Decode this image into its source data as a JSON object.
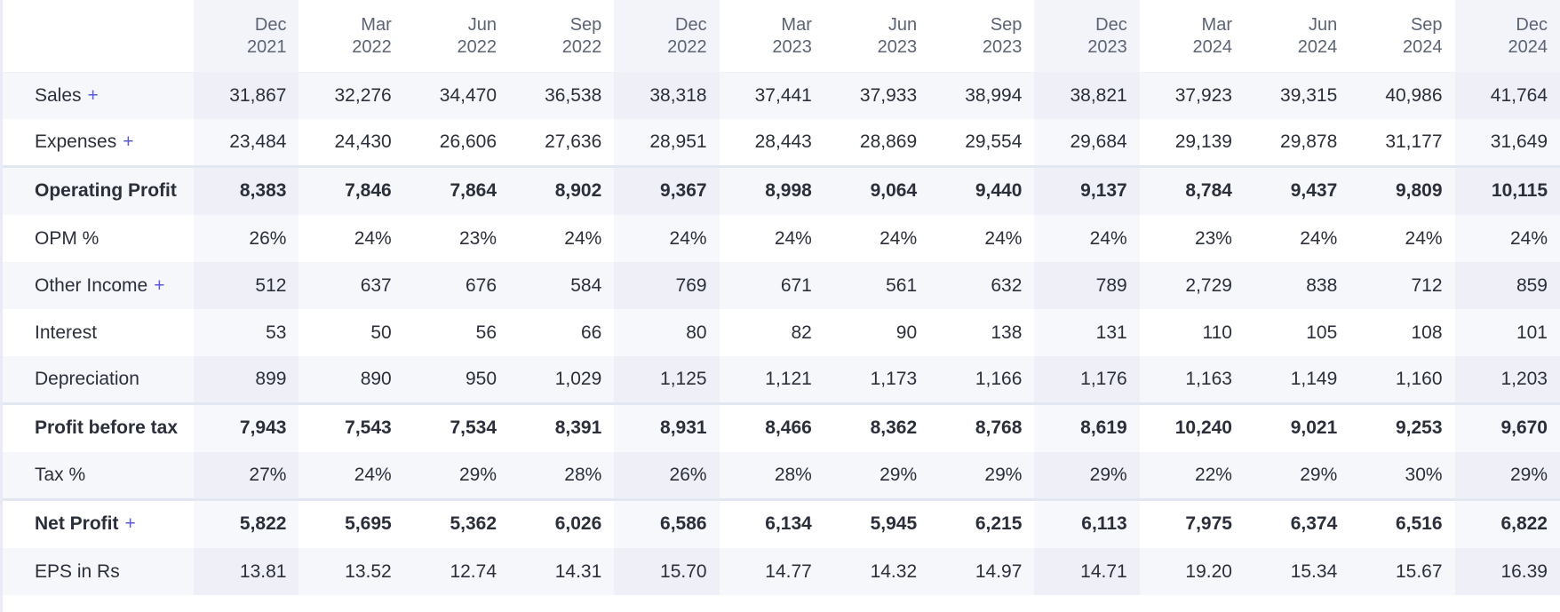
{
  "columns": [
    {
      "month": "Dec",
      "year": "2021"
    },
    {
      "month": "Mar",
      "year": "2022"
    },
    {
      "month": "Jun",
      "year": "2022"
    },
    {
      "month": "Sep",
      "year": "2022"
    },
    {
      "month": "Dec",
      "year": "2022"
    },
    {
      "month": "Mar",
      "year": "2023"
    },
    {
      "month": "Jun",
      "year": "2023"
    },
    {
      "month": "Sep",
      "year": "2023"
    },
    {
      "month": "Dec",
      "year": "2023"
    },
    {
      "month": "Mar",
      "year": "2024"
    },
    {
      "month": "Jun",
      "year": "2024"
    },
    {
      "month": "Sep",
      "year": "2024"
    },
    {
      "month": "Dec",
      "year": "2024"
    }
  ],
  "rows": [
    {
      "label": "Sales",
      "expandable": true,
      "expand_symbol": "+",
      "values": [
        "31,867",
        "32,276",
        "34,470",
        "36,538",
        "38,318",
        "37,441",
        "37,933",
        "38,994",
        "38,821",
        "37,923",
        "39,315",
        "40,986",
        "41,764"
      ]
    },
    {
      "label": "Expenses",
      "expandable": true,
      "expand_symbol": "+",
      "values": [
        "23,484",
        "24,430",
        "26,606",
        "27,636",
        "28,951",
        "28,443",
        "28,869",
        "29,554",
        "29,684",
        "29,139",
        "29,878",
        "31,177",
        "31,649"
      ]
    },
    {
      "label": "Operating Profit",
      "bold": true,
      "values": [
        "8,383",
        "7,846",
        "7,864",
        "8,902",
        "9,367",
        "8,998",
        "9,064",
        "9,440",
        "9,137",
        "8,784",
        "9,437",
        "9,809",
        "10,115"
      ]
    },
    {
      "label": "OPM %",
      "values": [
        "26%",
        "24%",
        "23%",
        "24%",
        "24%",
        "24%",
        "24%",
        "24%",
        "24%",
        "23%",
        "24%",
        "24%",
        "24%"
      ]
    },
    {
      "label": "Other Income",
      "expandable": true,
      "expand_symbol": "+",
      "values": [
        "512",
        "637",
        "676",
        "584",
        "769",
        "671",
        "561",
        "632",
        "789",
        "2,729",
        "838",
        "712",
        "859"
      ]
    },
    {
      "label": "Interest",
      "values": [
        "53",
        "50",
        "56",
        "66",
        "80",
        "82",
        "90",
        "138",
        "131",
        "110",
        "105",
        "108",
        "101"
      ]
    },
    {
      "label": "Depreciation",
      "values": [
        "899",
        "890",
        "950",
        "1,029",
        "1,125",
        "1,121",
        "1,173",
        "1,166",
        "1,176",
        "1,163",
        "1,149",
        "1,160",
        "1,203"
      ]
    },
    {
      "label": "Profit before tax",
      "bold": true,
      "values": [
        "7,943",
        "7,543",
        "7,534",
        "8,391",
        "8,931",
        "8,466",
        "8,362",
        "8,768",
        "8,619",
        "10,240",
        "9,021",
        "9,253",
        "9,670"
      ]
    },
    {
      "label": "Tax %",
      "values": [
        "27%",
        "24%",
        "29%",
        "28%",
        "26%",
        "28%",
        "29%",
        "29%",
        "29%",
        "22%",
        "29%",
        "30%",
        "29%"
      ]
    },
    {
      "label": "Net Profit",
      "bold": true,
      "expandable": true,
      "expand_symbol": "+",
      "values": [
        "5,822",
        "5,695",
        "5,362",
        "6,026",
        "6,586",
        "6,134",
        "5,945",
        "6,215",
        "6,113",
        "7,975",
        "6,374",
        "6,516",
        "6,822"
      ]
    },
    {
      "label": "EPS in Rs",
      "values": [
        "13.81",
        "13.52",
        "12.74",
        "14.31",
        "15.70",
        "14.77",
        "14.32",
        "14.97",
        "14.71",
        "19.20",
        "15.34",
        "15.67",
        "16.39"
      ]
    }
  ],
  "colors": {
    "accent": "#5b5bd6",
    "row_alt": "#f6f7fb",
    "column_shade": "#f3f4fa",
    "divider": "#e3e7f2"
  }
}
